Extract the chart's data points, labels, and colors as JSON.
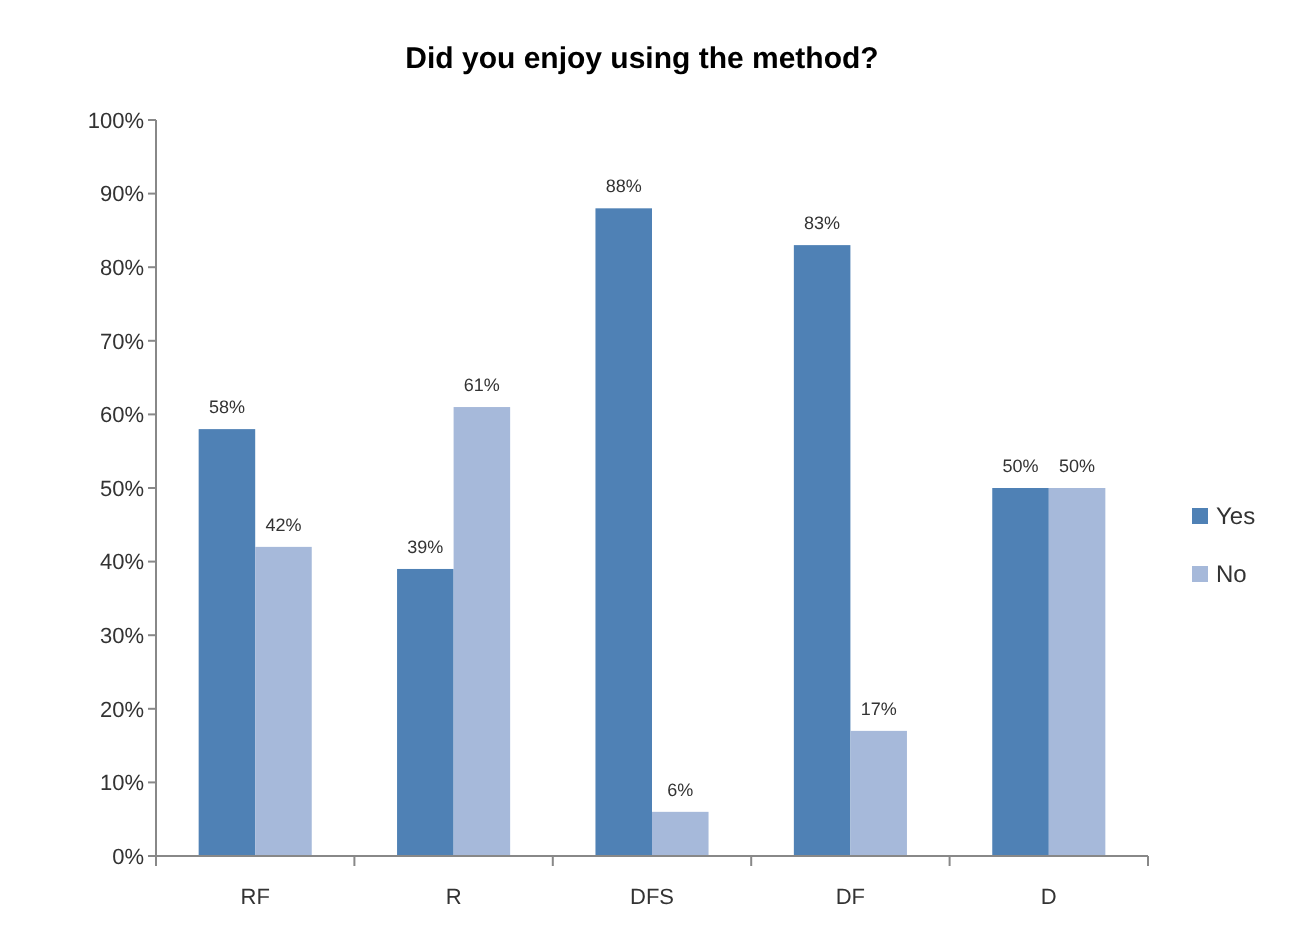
{
  "chart_data": {
    "type": "bar",
    "title": "Did you enjoy using the method?",
    "categories": [
      "RF",
      "R",
      "DFS",
      "DF",
      "D"
    ],
    "series": [
      {
        "name": "Yes",
        "color": "#4f81b5",
        "values": [
          58,
          39,
          88,
          83,
          50
        ],
        "value_labels": [
          "58%",
          "39%",
          "88%",
          "83%",
          "50%"
        ]
      },
      {
        "name": "No",
        "color": "#a6b9da",
        "values": [
          42,
          61,
          6,
          17,
          50
        ],
        "value_labels": [
          "42%",
          "61%",
          "6%",
          "17%",
          "50%"
        ]
      }
    ],
    "ylim": [
      0,
      100
    ],
    "yticks": [
      {
        "value": 0,
        "label": "0%"
      },
      {
        "value": 10,
        "label": "10%"
      },
      {
        "value": 20,
        "label": "20%"
      },
      {
        "value": 30,
        "label": "30%"
      },
      {
        "value": 40,
        "label": "40%"
      },
      {
        "value": 50,
        "label": "50%"
      },
      {
        "value": 60,
        "label": "60%"
      },
      {
        "value": 70,
        "label": "70%"
      },
      {
        "value": 80,
        "label": "80%"
      },
      {
        "value": 90,
        "label": "90%"
      },
      {
        "value": 100,
        "label": "100%"
      }
    ],
    "grid": false,
    "legend": "right"
  }
}
